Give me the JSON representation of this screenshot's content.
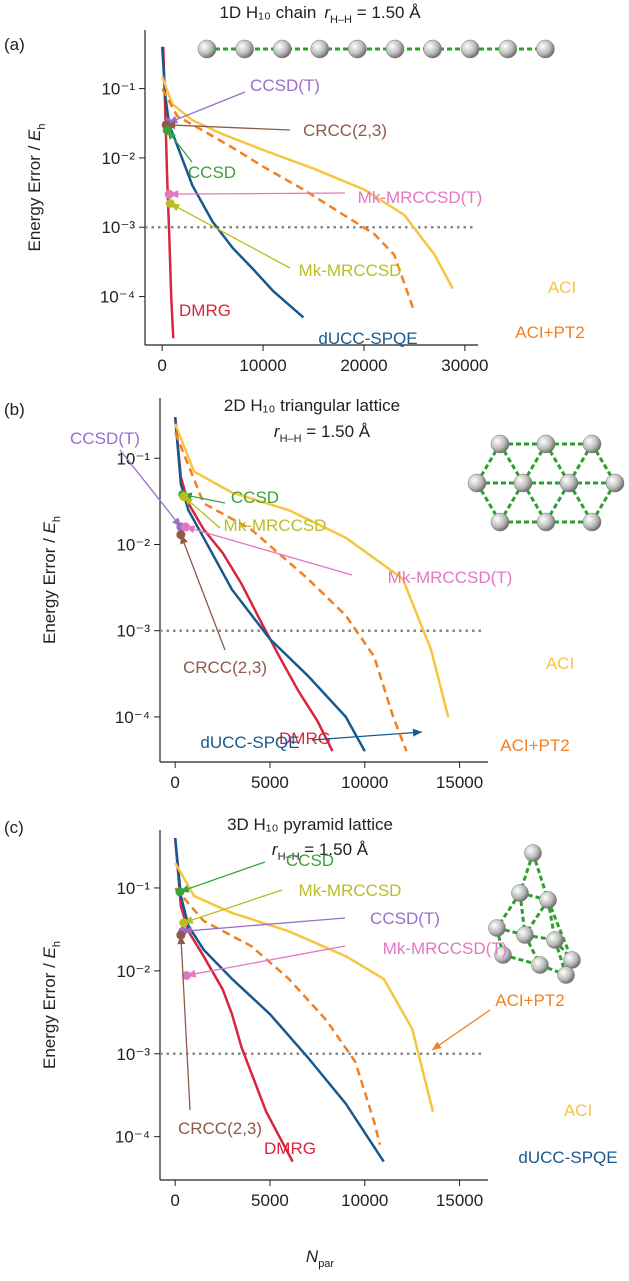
{
  "chart_data": [
    {
      "type": "line",
      "panel_label": "(a)",
      "title": "1D H₁₀ chain",
      "subtitle_symbol": "r",
      "subtitle_subscript": "H–H",
      "subtitle_value": " = 1.50 Å",
      "ylabel": "Energy Error / ",
      "ylabel_symbol": "E",
      "ylabel_subscript": "h",
      "log_y": true,
      "ylim": [
        2e-05,
        0.7
      ],
      "yticks": [
        {
          "value": 0.0001,
          "label": "10⁻⁴"
        },
        {
          "value": 0.001,
          "label": "10⁻³"
        },
        {
          "value": 0.01,
          "label": "10⁻²"
        },
        {
          "value": 0.1,
          "label": "10⁻¹"
        }
      ],
      "xlim": [
        -1700,
        31300
      ],
      "xticks": [
        0,
        10000,
        20000,
        30000
      ],
      "reference_line": 0.001,
      "series": [
        {
          "name": "DMRG",
          "color": "#d7263d",
          "x": [
            100,
            300,
            500,
            700,
            900,
            1100
          ],
          "values": [
            0.4,
            0.05,
            0.005,
            0.0008,
            0.0001,
            2.5e-05
          ]
        },
        {
          "name": "dUCC-SPQE",
          "color": "#17598f",
          "x": [
            0,
            300,
            700,
            1500,
            3000,
            5000,
            7000,
            9000,
            11000,
            14000
          ],
          "values": [
            0.4,
            0.08,
            0.03,
            0.015,
            0.004,
            0.0012,
            0.0005,
            0.00025,
            0.00012,
            5e-05
          ]
        },
        {
          "name": "ACI",
          "color": "#f8c541",
          "x": [
            0,
            1000,
            3000,
            6000,
            10000,
            15000,
            20000,
            24000,
            27000,
            28800
          ],
          "values": [
            0.15,
            0.06,
            0.035,
            0.022,
            0.013,
            0.007,
            0.0035,
            0.0015,
            0.0004,
            0.00013
          ]
        },
        {
          "name": "ACI+PT2",
          "color": "#f47f20",
          "dashed": true,
          "x": [
            0,
            1500,
            4000,
            7000,
            10000,
            14000,
            18000,
            21000,
            23000,
            25000
          ],
          "values": [
            0.1,
            0.04,
            0.025,
            0.014,
            0.0075,
            0.0035,
            0.0015,
            0.0008,
            0.0004,
            6e-05
          ]
        }
      ],
      "points": [
        {
          "name": "CCSD(T)",
          "color": "#9a6fc9",
          "x": 600,
          "value": 0.032
        },
        {
          "name": "CRCC(2,3)",
          "color": "#8f5a4a",
          "x": 400,
          "value": 0.03
        },
        {
          "name": "CCSD",
          "color": "#3aa339",
          "x": 500,
          "value": 0.025
        },
        {
          "name": "Mk-MRCCSD(T)",
          "color": "#e377c2",
          "x": 700,
          "value": 0.003
        },
        {
          "name": "Mk-MRCCSD",
          "color": "#bcbd22",
          "x": 800,
          "value": 0.0022
        }
      ]
    },
    {
      "type": "line",
      "panel_label": "(b)",
      "title": "2D H₁₀  triangular lattice",
      "subtitle_symbol": "r",
      "subtitle_subscript": "H–H",
      "subtitle_value": " = 1.50 Å",
      "ylabel": "Energy Error / ",
      "ylabel_symbol": "E",
      "ylabel_subscript": "h",
      "log_y": true,
      "ylim": [
        3e-05,
        0.5
      ],
      "yticks": [
        {
          "value": 0.0001,
          "label": "10⁻⁴"
        },
        {
          "value": 0.001,
          "label": "10⁻³"
        },
        {
          "value": 0.01,
          "label": "10⁻²"
        },
        {
          "value": 0.1,
          "label": "10⁻¹"
        }
      ],
      "xlim": [
        -800,
        16500
      ],
      "xticks": [
        0,
        5000,
        10000,
        15000
      ],
      "reference_line": 0.001,
      "series": [
        {
          "name": "DMRG",
          "color": "#d7263d",
          "x": [
            0,
            300,
            700,
            1500,
            2500,
            3500,
            4500,
            5500,
            6500,
            7500,
            8300
          ],
          "values": [
            0.3,
            0.06,
            0.03,
            0.015,
            0.008,
            0.0035,
            0.0013,
            0.0005,
            0.0002,
            9e-05,
            4e-05
          ]
        },
        {
          "name": "dUCC-SPQE",
          "color": "#17598f",
          "x": [
            0,
            300,
            700,
            1500,
            3000,
            5000,
            7000,
            9000,
            10000
          ],
          "values": [
            0.3,
            0.05,
            0.025,
            0.012,
            0.003,
            0.0008,
            0.0003,
            0.0001,
            4e-05
          ]
        },
        {
          "name": "ACI",
          "color": "#f8c541",
          "x": [
            0,
            1000,
            3000,
            6000,
            9000,
            12000,
            13500,
            14400
          ],
          "values": [
            0.25,
            0.07,
            0.04,
            0.025,
            0.012,
            0.004,
            0.0006,
            0.0001
          ]
        },
        {
          "name": "ACI+PT2",
          "color": "#f47f20",
          "dashed": true,
          "x": [
            0,
            1500,
            4000,
            7000,
            9000,
            10500,
            11500,
            12200
          ],
          "values": [
            0.2,
            0.03,
            0.015,
            0.004,
            0.0015,
            0.0005,
            0.0001,
            4e-05
          ]
        }
      ],
      "points": [
        {
          "name": "CCSD(T)",
          "color": "#9a6fc9",
          "x": 300,
          "value": 0.016
        },
        {
          "name": "CCSD",
          "color": "#3aa339",
          "x": 400,
          "value": 0.038
        },
        {
          "name": "Mk-MRCCSD",
          "color": "#bcbd22",
          "x": 450,
          "value": 0.036
        },
        {
          "name": "Mk-MRCCSD(T)",
          "color": "#e377c2",
          "x": 550,
          "value": 0.016
        },
        {
          "name": "CRCC(2,3)",
          "color": "#8f5a4a",
          "x": 300,
          "value": 0.013
        }
      ]
    },
    {
      "type": "line",
      "panel_label": "(c)",
      "title": "3D H₁₀  pyramid lattice",
      "subtitle_symbol": "r",
      "subtitle_subscript": "H–H",
      "subtitle_value": " = 1.50 Å",
      "ylabel": "Energy Error / ",
      "ylabel_symbol": "E",
      "ylabel_subscript": "h",
      "xlabel": "N",
      "xlabel_subscript": "par",
      "log_y": true,
      "ylim": [
        3e-05,
        0.5
      ],
      "yticks": [
        {
          "value": 0.0001,
          "label": "10⁻⁴"
        },
        {
          "value": 0.001,
          "label": "10⁻³"
        },
        {
          "value": 0.01,
          "label": "10⁻²"
        },
        {
          "value": 0.1,
          "label": "10⁻¹"
        }
      ],
      "xlim": [
        -800,
        16500
      ],
      "xticks": [
        0,
        5000,
        10000,
        15000
      ],
      "reference_line": 0.001,
      "series": [
        {
          "name": "DMRG",
          "color": "#d7263d",
          "x": [
            0,
            300,
            700,
            1500,
            2500,
            3000,
            3500,
            4000,
            4800,
            5500,
            6200
          ],
          "values": [
            0.4,
            0.06,
            0.03,
            0.015,
            0.006,
            0.003,
            0.0012,
            0.0006,
            0.0002,
            0.0001,
            5e-05
          ]
        },
        {
          "name": "dUCC-SPQE",
          "color": "#17598f",
          "x": [
            0,
            300,
            700,
            1500,
            3000,
            5000,
            7000,
            9000,
            11000
          ],
          "values": [
            0.4,
            0.08,
            0.035,
            0.018,
            0.008,
            0.003,
            0.0009,
            0.00025,
            5e-05
          ]
        },
        {
          "name": "ACI",
          "color": "#f8c541",
          "x": [
            0,
            1000,
            3000,
            6000,
            9000,
            11000,
            12500,
            13600
          ],
          "values": [
            0.2,
            0.08,
            0.05,
            0.03,
            0.015,
            0.008,
            0.002,
            0.0002
          ]
        },
        {
          "name": "ACI+PT2",
          "color": "#f47f20",
          "dashed": true,
          "x": [
            0,
            1500,
            4000,
            6000,
            8000,
            9500,
            10500,
            10800
          ],
          "values": [
            0.1,
            0.04,
            0.02,
            0.008,
            0.0025,
            0.0008,
            0.00015,
            8e-05
          ]
        }
      ],
      "points": [
        {
          "name": "CCSD",
          "color": "#3aa339",
          "x": 250,
          "value": 0.09
        },
        {
          "name": "Mk-MRCCSD",
          "color": "#bcbd22",
          "x": 450,
          "value": 0.038
        },
        {
          "name": "CCSD(T)",
          "color": "#9a6fc9",
          "x": 400,
          "value": 0.03
        },
        {
          "name": "Mk-MRCCSD(T)",
          "color": "#e377c2",
          "x": 600,
          "value": 0.0088
        },
        {
          "name": "CRCC(2,3)",
          "color": "#8f5a4a",
          "x": 300,
          "value": 0.027
        }
      ]
    }
  ]
}
